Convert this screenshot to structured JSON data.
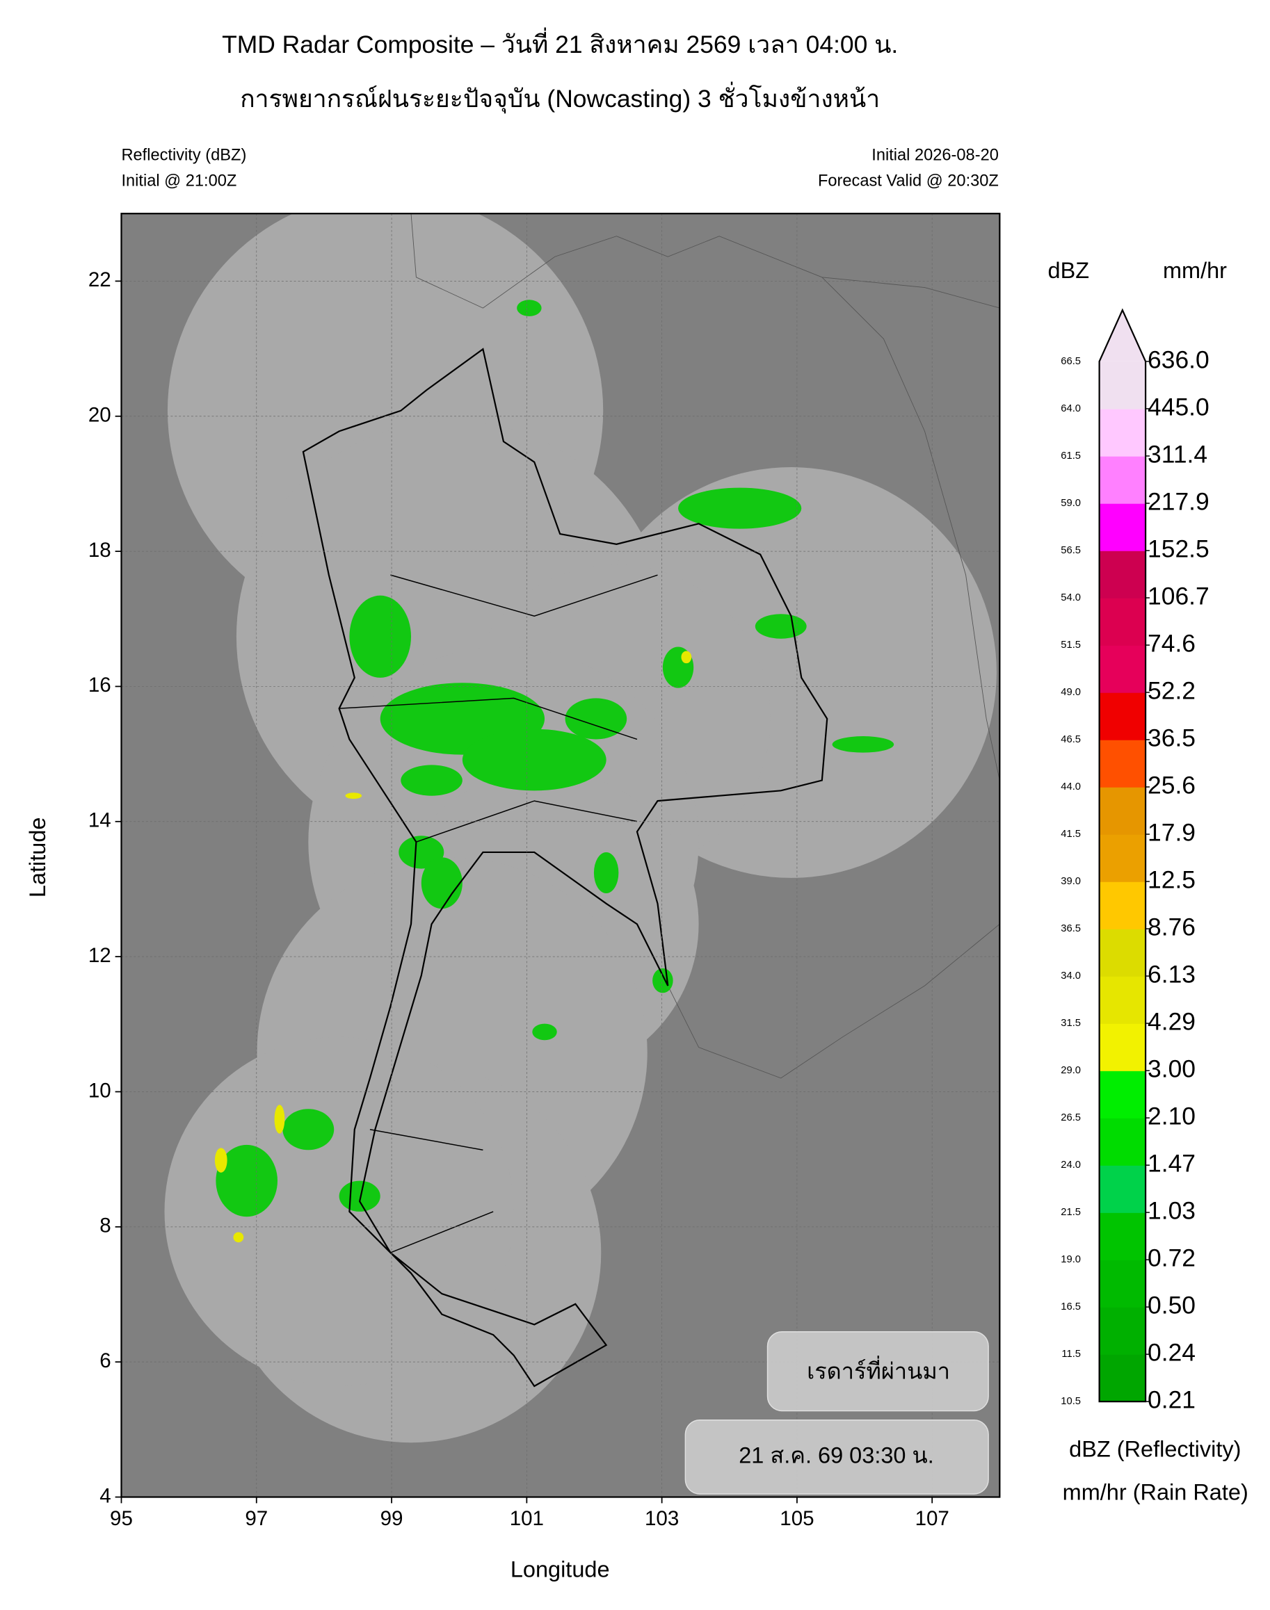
{
  "chart_data": {
    "type": "map",
    "title": "TMD Radar Composite – วันที่ 21 สิงหาคม 2569 เวลา 04:00 น.",
    "subtitle": "การพยากรณ์ฝนระยะปัจจุบัน (Nowcasting) 3 ชั่วโมงข้างหน้า",
    "left_info": [
      "Reflectivity (dBZ)",
      "Initial @ 21:00Z"
    ],
    "right_info": [
      "Initial 2026-08-20",
      "Forecast Valid @ 20:30Z"
    ],
    "xlabel": "Longitude",
    "ylabel": "Latitude",
    "xlim": [
      95,
      108
    ],
    "ylim": [
      4,
      23
    ],
    "xticks": [
      95,
      97,
      99,
      101,
      103,
      105,
      107
    ],
    "yticks": [
      4,
      6,
      8,
      10,
      12,
      14,
      16,
      18,
      20,
      22
    ],
    "grid": true,
    "colorbar": {
      "dbz_title": "dBZ",
      "rate_title": "mm/hr",
      "dbz_ticks": [
        10.5,
        11.5,
        16.5,
        {
          "value": 19,
          "label": "19.0"
        },
        21.5,
        {
          "value": 24,
          "label": "24.0"
        },
        26.5,
        {
          "value": 29,
          "label": "29.0"
        },
        31.5,
        {
          "value": 34,
          "label": "34.0"
        },
        36.5,
        {
          "value": 39,
          "label": "39.0"
        },
        41.5,
        {
          "value": 44,
          "label": "44.0"
        },
        46.5,
        {
          "value": 49,
          "label": "49.0"
        },
        51.5,
        {
          "value": 54,
          "label": "54.0"
        },
        56.5,
        {
          "value": 59,
          "label": "59.0"
        },
        61.5,
        {
          "value": 64,
          "label": "64.0"
        },
        66.5
      ],
      "rate_ticks": [
        0.21,
        0.24,
        {
          "value": 0.5,
          "label": "0.50"
        },
        0.72,
        1.03,
        1.47,
        {
          "value": 2.1,
          "label": "2.10"
        },
        {
          "value": 3,
          "label": "3.00"
        },
        4.29,
        6.13,
        8.76,
        12.5,
        17.9,
        25.6,
        36.5,
        52.2,
        74.6,
        106.7,
        152.5,
        217.9,
        311.4,
        {
          "value": 445,
          "label": "445.0"
        },
        {
          "value": 636,
          "label": "636.0"
        }
      ],
      "colors": [
        "#00a600",
        "#00b000",
        "#00ba00",
        "#00c400",
        "#00d24a",
        "#00dc00",
        "#00ee00",
        "#f2f200",
        "#e6e600",
        "#dcdc00",
        "#ffc800",
        "#eba000",
        "#e69600",
        "#ff5000",
        "#f00000",
        "#e6005a",
        "#dc0050",
        "#cd0050",
        "#ff00ff",
        "#ff80ff",
        "#ffc8ff",
        "#f0e0f0"
      ],
      "extend_color": "#f0e0f0",
      "legend": [
        "dBZ (Reflectivity)",
        "mm/hr (Rain Rate)"
      ]
    },
    "badges": [
      "เรดาร์ที่ผ่านมา",
      "21 ส.ค. 69 03:30 น."
    ]
  }
}
